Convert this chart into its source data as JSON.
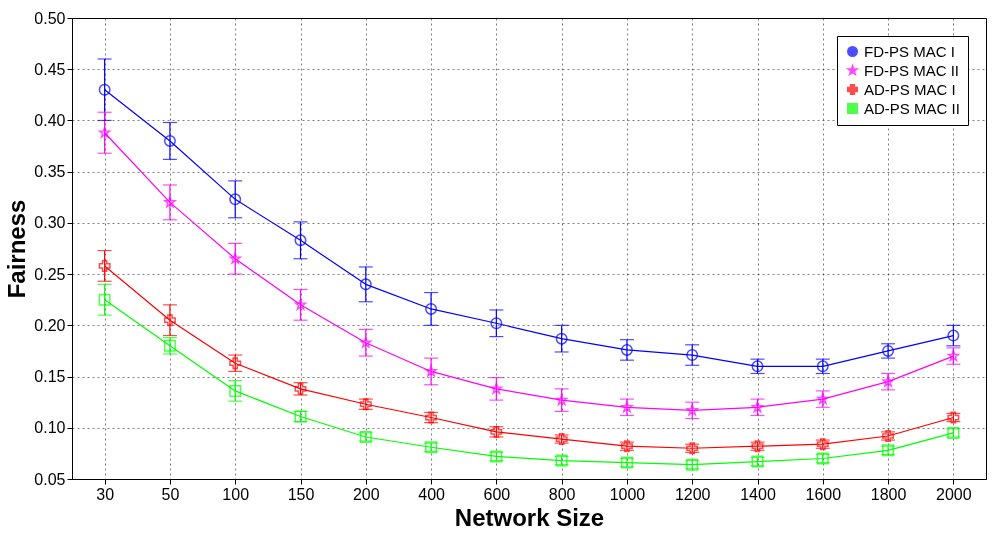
{
  "chart_data": {
    "type": "line",
    "xlabel": "Network Size",
    "ylabel": "Fairness",
    "categories": [
      "30",
      "50",
      "100",
      "150",
      "200",
      "400",
      "600",
      "800",
      "1000",
      "1200",
      "1400",
      "1600",
      "1800",
      "2000"
    ],
    "ylim": [
      0.05,
      0.5
    ],
    "yticks": [
      0.05,
      {
        "value": 0.1,
        "label": "0.10"
      },
      0.15,
      {
        "value": 0.2,
        "label": "0.20"
      },
      0.25,
      {
        "value": 0.3,
        "label": "0.30"
      },
      0.35,
      {
        "value": 0.4,
        "label": "0.40"
      },
      0.45,
      {
        "value": 0.5,
        "label": "0.50"
      }
    ],
    "grid": true,
    "legend": "top right",
    "line_style": "solid",
    "series": [
      {
        "name": "FD-PS MAC I",
        "color": "#0000ff",
        "marker": "circle",
        "values": [
          0.43,
          0.38,
          0.323,
          0.283,
          0.24,
          0.216,
          0.202,
          0.187,
          0.176,
          0.171,
          0.16,
          0.16,
          0.175,
          0.19
        ],
        "errors": [
          0.03,
          0.018,
          0.018,
          0.018,
          0.017,
          0.016,
          0.013,
          0.013,
          0.01,
          0.01,
          0.007,
          0.007,
          0.007,
          0.01
        ]
      },
      {
        "name": "FD-PS MAC II",
        "color": "#ff00ff",
        "marker": "star",
        "values": [
          0.388,
          0.32,
          0.265,
          0.22,
          0.183,
          0.155,
          0.138,
          0.127,
          0.12,
          0.117,
          0.12,
          0.128,
          0.145,
          0.17
        ],
        "errors": [
          0.02,
          0.017,
          0.015,
          0.015,
          0.013,
          0.013,
          0.011,
          0.011,
          0.008,
          0.008,
          0.008,
          0.008,
          0.008,
          0.008
        ]
      },
      {
        "name": "AD-PS MAC I",
        "color": "#ff0000",
        "marker": "cross",
        "values": [
          0.258,
          0.205,
          0.163,
          0.138,
          0.123,
          0.11,
          0.096,
          0.089,
          0.082,
          0.08,
          0.082,
          0.084,
          0.092,
          0.11
        ],
        "errors": [
          0.015,
          0.015,
          0.008,
          0.006,
          0.005,
          0.005,
          0.005,
          0.004,
          0.004,
          0.004,
          0.004,
          0.004,
          0.004,
          0.004
        ]
      },
      {
        "name": "AD-PS MAC II",
        "color": "#00ff00",
        "marker": "square",
        "values": [
          0.225,
          0.18,
          0.136,
          0.111,
          0.091,
          0.081,
          0.072,
          0.068,
          0.066,
          0.064,
          0.067,
          0.07,
          0.078,
          0.095
        ],
        "errors": [
          0.015,
          0.008,
          0.01,
          0.005,
          0.004,
          0.004,
          0.004,
          0.004,
          0.004,
          0.004,
          0.004,
          0.004,
          0.004,
          0.004
        ]
      }
    ]
  }
}
